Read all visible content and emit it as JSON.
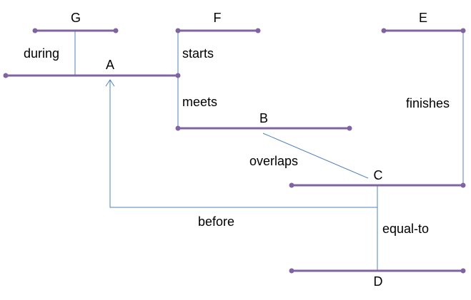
{
  "colors": {
    "interval_line": "#8064a2",
    "connector_line": "#4f81bd",
    "text": "#000000",
    "background": "#ffffff"
  },
  "intervals": {
    "A": "A",
    "B": "B",
    "C": "C",
    "D": "D",
    "E": "E",
    "F": "F",
    "G": "G"
  },
  "relations": {
    "during": "during",
    "starts": "starts",
    "meets": "meets",
    "finishes": "finishes",
    "overlaps": "overlaps",
    "before": "before",
    "equal_to": "equal-to"
  }
}
